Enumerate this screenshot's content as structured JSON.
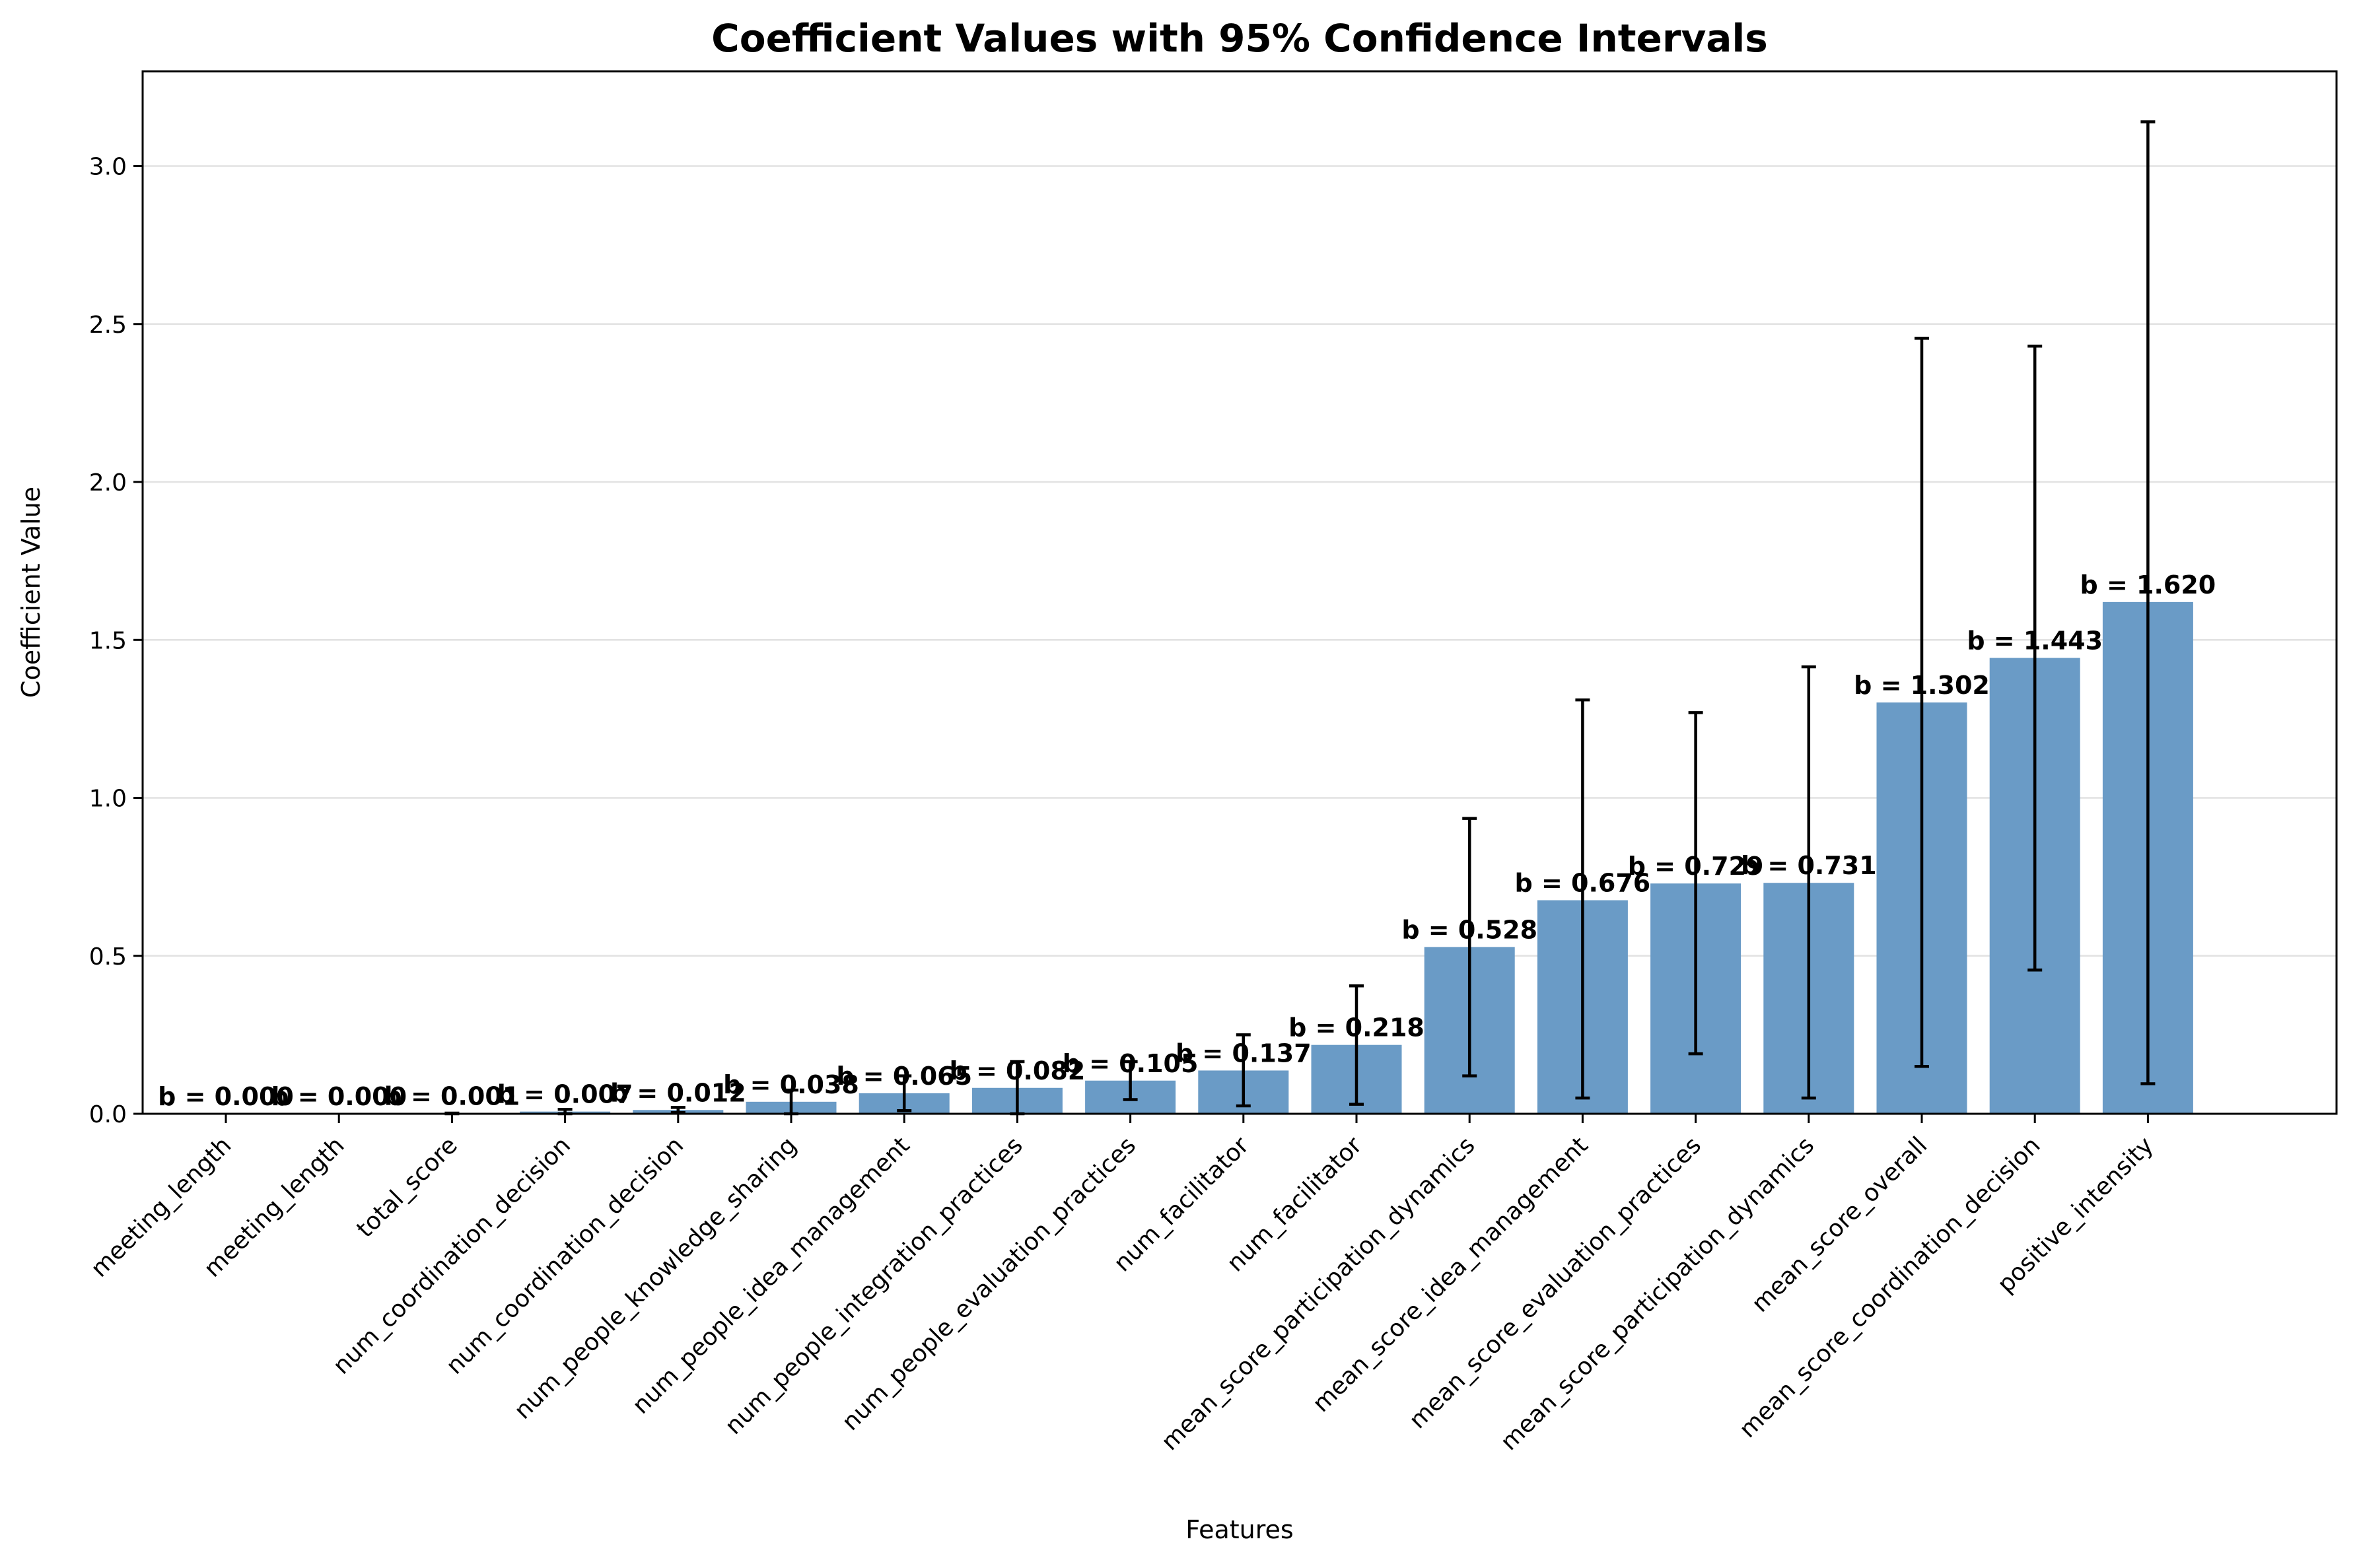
{
  "chart_data": {
    "type": "bar",
    "title": "Coefficient Values with 95% Confidence Intervals",
    "xlabel": "Features",
    "ylabel": "Coefficient Value",
    "ylim": [
      0,
      3.3
    ],
    "yticks": [
      0.0,
      0.5,
      1.0,
      1.5,
      2.0,
      2.5,
      3.0
    ],
    "ytick_labels": [
      "0.0",
      "0.5",
      "1.0",
      "1.5",
      "2.0",
      "2.5",
      "3.0"
    ],
    "grid": "horizontal",
    "bar_color": "#6a9bc6",
    "errorbar_color": "#000000",
    "categories": [
      "meeting_length",
      "meeting_length",
      "total_score",
      "num_coordination_decision",
      "num_coordination_decision",
      "num_people_knowledge_sharing",
      "num_people_idea_management",
      "num_people_integration_practices",
      "num_people_evaluation_practices",
      "num_facilitator",
      "num_facilitator",
      "mean_score_participation_dynamics",
      "mean_score_idea_management",
      "mean_score_evaluation_practices",
      "mean_score_participation_dynamics",
      "mean_score_overall",
      "mean_score_coordination_decision",
      "positive_intensity"
    ],
    "values": [
      0.0,
      0.0,
      0.001,
      0.007,
      0.012,
      0.038,
      0.065,
      0.082,
      0.105,
      0.137,
      0.218,
      0.528,
      0.676,
      0.729,
      0.731,
      1.302,
      1.443,
      1.62
    ],
    "ci_lower": [
      0.0,
      0.0,
      0.0,
      0.0,
      0.004,
      0.0,
      0.01,
      0.0,
      0.045,
      0.025,
      0.03,
      0.12,
      0.05,
      0.19,
      0.05,
      0.15,
      0.455,
      0.095
    ],
    "ci_upper": [
      0.0,
      0.0,
      0.002,
      0.014,
      0.02,
      0.075,
      0.12,
      0.165,
      0.165,
      0.25,
      0.405,
      0.935,
      1.31,
      1.27,
      1.415,
      2.455,
      2.43,
      3.14
    ],
    "data_labels": [
      "b = 0.000",
      "b = 0.000",
      "b = 0.001",
      "b = 0.007",
      "b = 0.012",
      "b = 0.038",
      "b = 0.065",
      "b = 0.082",
      "b = 0.105",
      "b = 0.137",
      "b = 0.218",
      "b = 0.528",
      "b = 0.676",
      "b = 0.729",
      "b = 0.731",
      "b = 1.302",
      "b = 1.443",
      "b = 1.620"
    ]
  }
}
